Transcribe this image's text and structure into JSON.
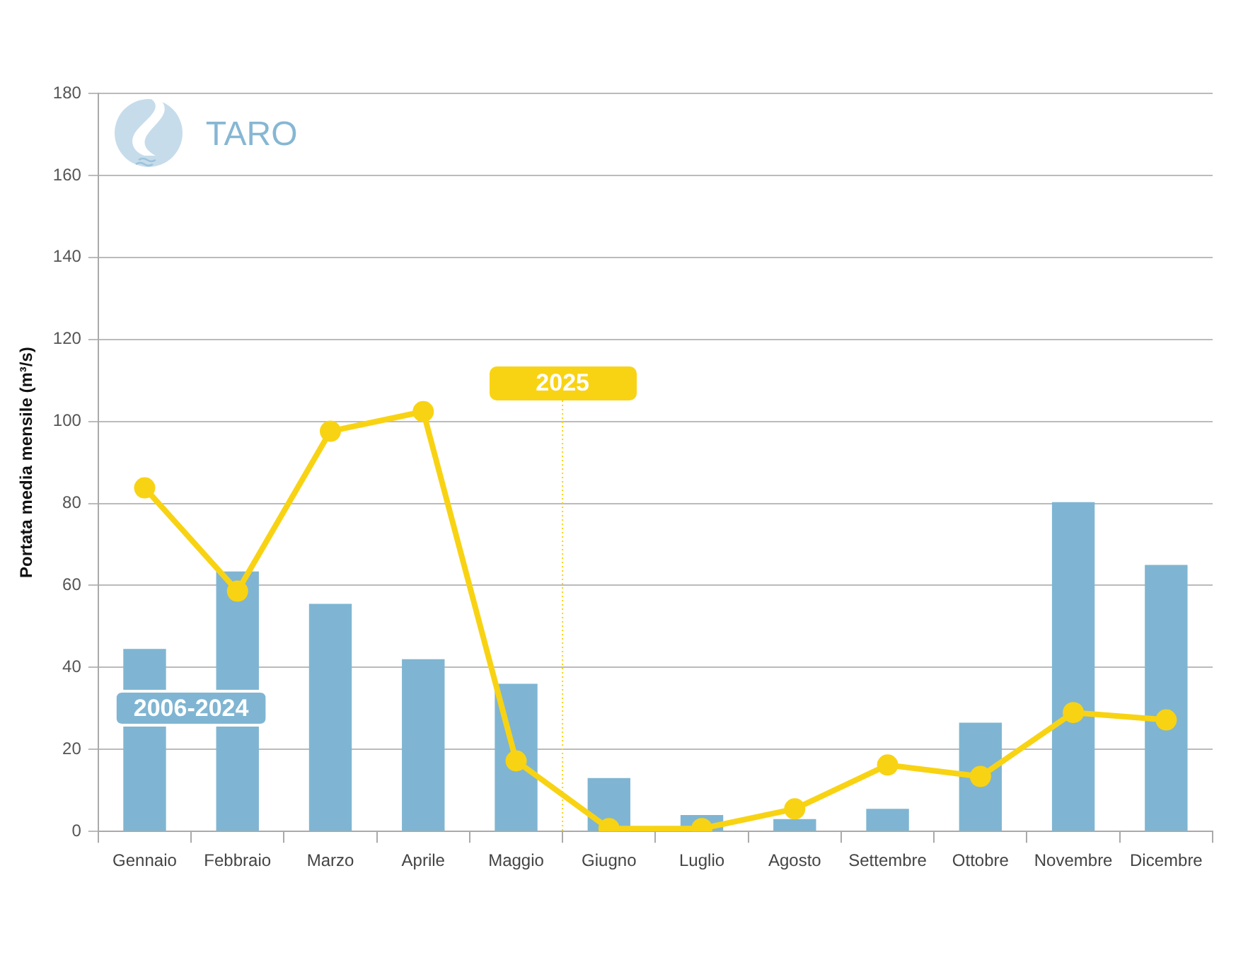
{
  "chart_data": {
    "type": "bar",
    "title": "TARO",
    "ylabel": "Portata media mensile (m³/s)",
    "categories": [
      "Gennaio",
      "Febbraio",
      "Marzo",
      "Aprile",
      "Maggio",
      "Giugno",
      "Luglio",
      "Agosto",
      "Settembre",
      "Ottobre",
      "Novembre",
      "Dicembre"
    ],
    "series": [
      {
        "name": "2006-2024",
        "color": "#7fb5d2",
        "values": [
          44.5,
          63.4,
          55.5,
          42,
          36,
          13,
          4,
          3,
          5.5,
          26.5,
          80.3,
          65
        ]
      },
      {
        "name": "2025",
        "type": "line",
        "color": "#f8d313",
        "values": [
          83.8,
          58.6,
          97.6,
          102.4,
          17.2,
          0.7,
          0.7,
          5.5,
          16.2,
          13.4,
          29,
          27.2
        ]
      }
    ],
    "ylim": [
      0,
      180
    ],
    "yticks": [
      0,
      20,
      40,
      60,
      80,
      100,
      120,
      140,
      160,
      180
    ],
    "grid": "y",
    "marker": "circle"
  }
}
